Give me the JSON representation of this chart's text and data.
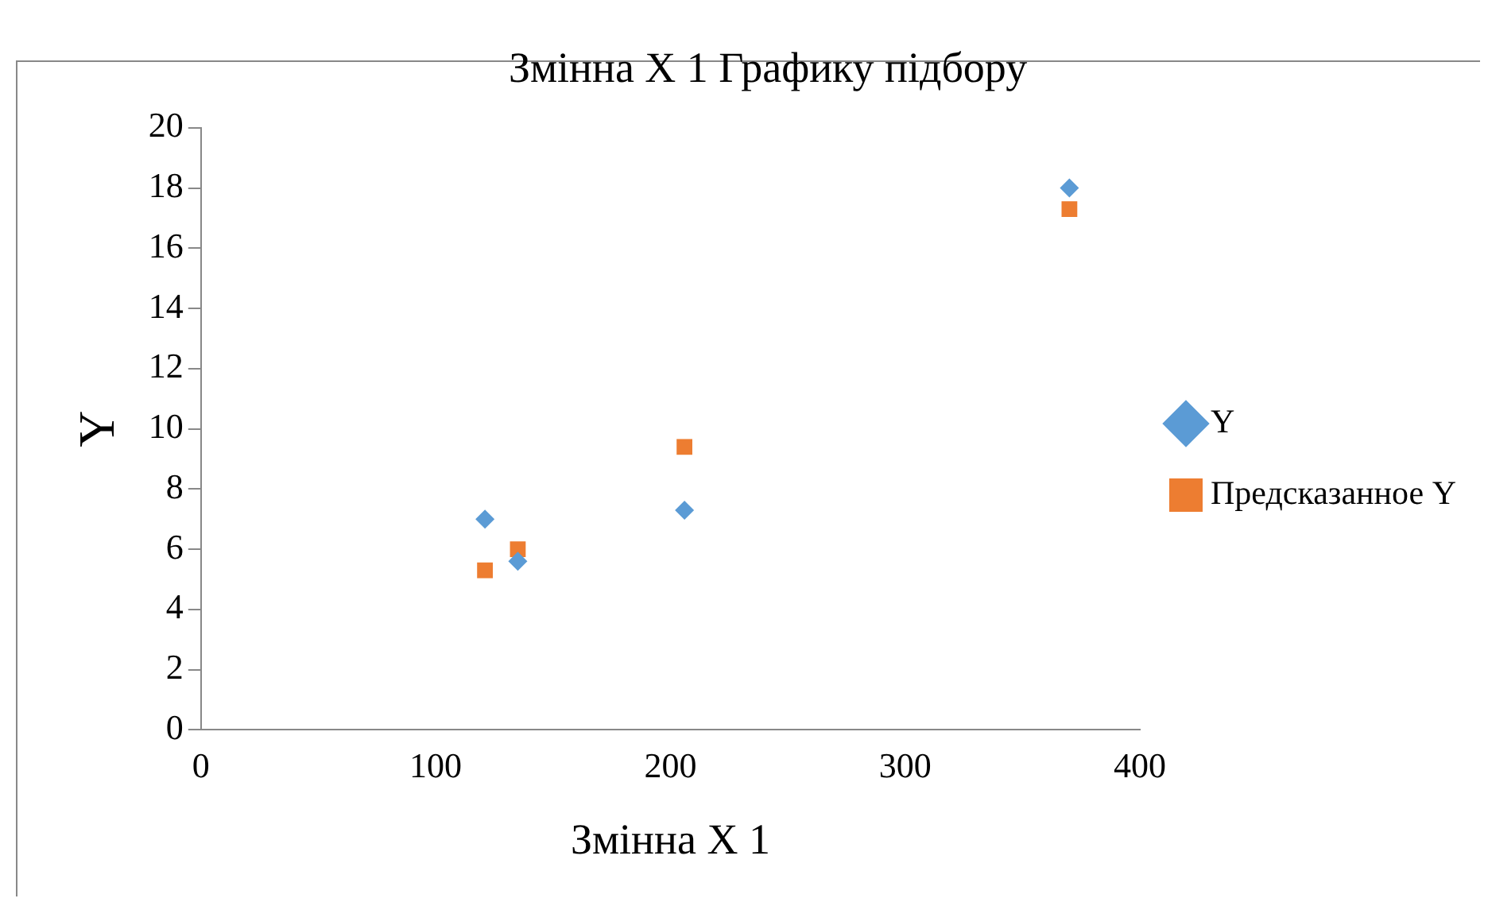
{
  "chart_data": {
    "type": "scatter",
    "title": "Змінна X 1 Графику підбору",
    "xlabel": "Змінна X 1",
    "ylabel": "Y",
    "x": [
      121,
      135,
      206,
      370
    ],
    "series": [
      {
        "name": "Y",
        "color": "#5b9bd5",
        "marker": "diamond",
        "values": [
          7.0,
          5.6,
          7.3,
          18.0
        ]
      },
      {
        "name": "Предсказанное Y",
        "color": "#ed7d31",
        "marker": "square",
        "values": [
          5.3,
          6.0,
          9.4,
          17.3
        ]
      }
    ],
    "xlim": [
      0,
      400
    ],
    "xticks": [
      0,
      100,
      200,
      300,
      400
    ],
    "ylim": [
      0,
      20
    ],
    "yticks": [
      0,
      2,
      4,
      6,
      8,
      10,
      12,
      14,
      16,
      18,
      20
    ],
    "grid": false,
    "legend": "right"
  }
}
